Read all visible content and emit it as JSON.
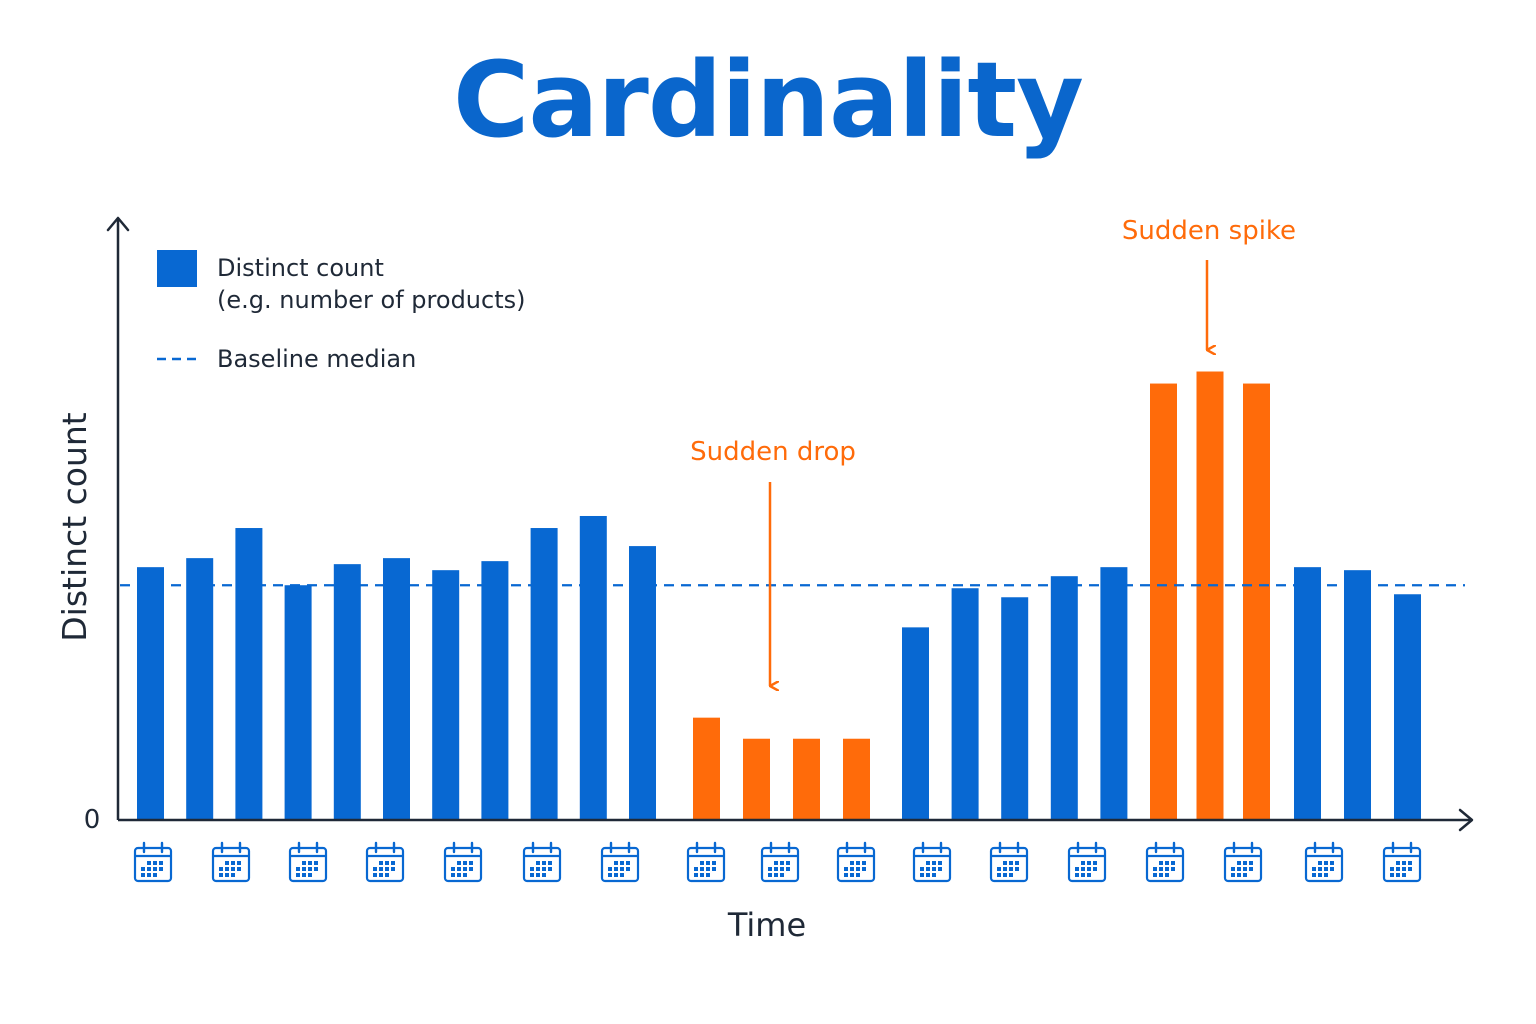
{
  "colors": {
    "normal": "#0868d2",
    "anomaly": "#ff6b0a",
    "axis": "#1f2937",
    "title": "#0a66cc"
  },
  "chart_data": {
    "type": "bar",
    "title": "Cardinality",
    "xlabel": "Time",
    "ylabel": "Distinct count",
    "y_tick_labels": [
      "0"
    ],
    "ylim": [
      0,
      100
    ],
    "legend": {
      "placement": "top-left",
      "items": [
        {
          "kind": "bar",
          "label_lines": [
            "Distinct count",
            "(e.g. number of products)"
          ]
        },
        {
          "kind": "dashed-line",
          "label_lines": [
            "Baseline median"
          ]
        }
      ]
    },
    "baseline_median": 39,
    "x_tick_icon": "calendar-icon",
    "x_tick_count": 17,
    "series": [
      {
        "values": [
          42,
          43.5,
          48.5,
          39,
          42.5,
          43.5,
          41.5,
          43,
          48.5,
          50.5,
          45.5,
          17,
          13.5,
          13.5,
          13.5,
          32,
          38.5,
          37,
          40.5,
          42,
          72.5,
          74.5,
          72.5,
          42,
          41.5,
          37.5
        ],
        "status": [
          "normal",
          "normal",
          "normal",
          "normal",
          "normal",
          "normal",
          "normal",
          "normal",
          "normal",
          "normal",
          "normal",
          "drop",
          "drop",
          "drop",
          "drop",
          "normal",
          "normal",
          "normal",
          "normal",
          "normal",
          "spike",
          "spike",
          "spike",
          "normal",
          "normal",
          "normal"
        ]
      }
    ],
    "annotations": [
      {
        "id": "drop",
        "text": "Sudden drop",
        "target_index": 12,
        "color": "#ff6b0a"
      },
      {
        "id": "spike",
        "text": "Sudden spike",
        "target_index": 21,
        "color": "#ff6b0a"
      }
    ]
  }
}
